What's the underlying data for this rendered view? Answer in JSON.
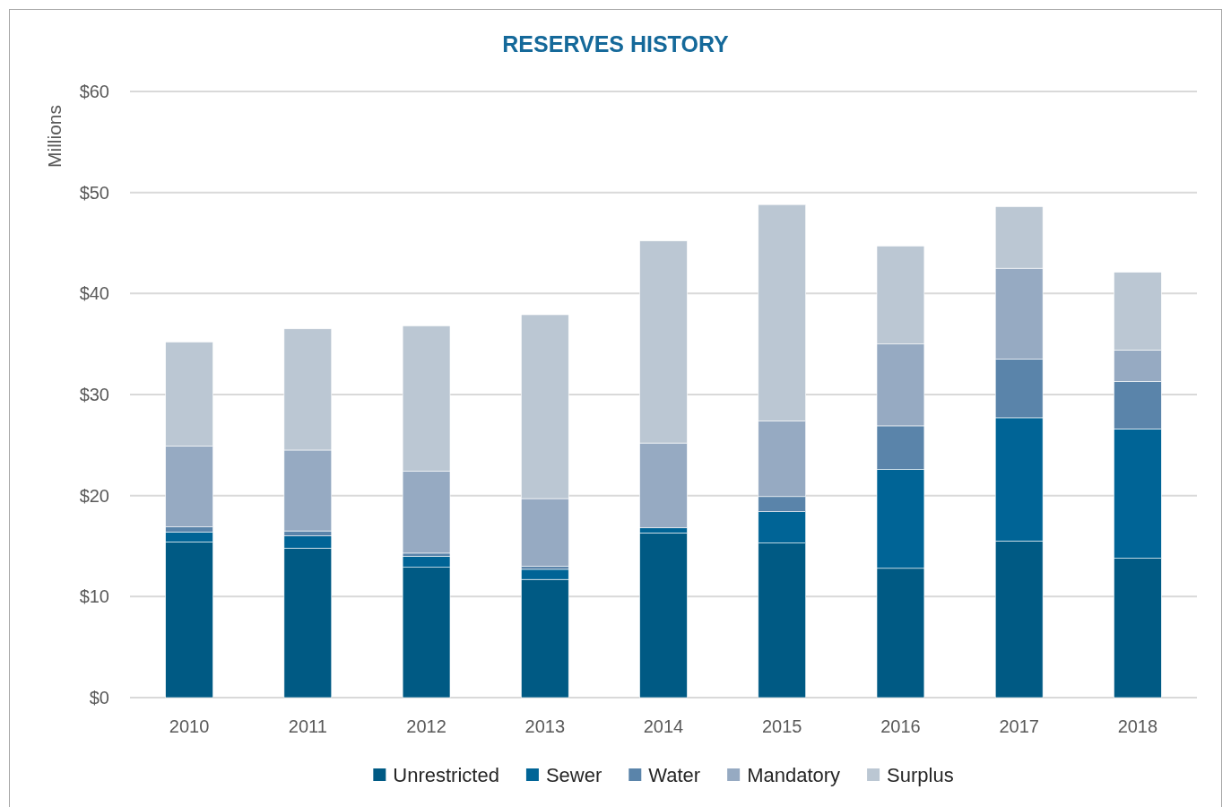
{
  "chart_data": {
    "type": "bar",
    "title": "RESERVES HISTORY",
    "ylabel": "Millions",
    "categories": [
      "2010",
      "2011",
      "2012",
      "2013",
      "2014",
      "2015",
      "2016",
      "2017",
      "2018"
    ],
    "stacked": true,
    "series": [
      {
        "name": "Unrestricted",
        "color": "#005a84",
        "values": [
          15.4,
          14.8,
          12.9,
          11.7,
          16.3,
          15.3,
          12.8,
          15.5,
          13.8
        ]
      },
      {
        "name": "Sewer",
        "color": "#006496",
        "values": [
          1.0,
          1.2,
          1.1,
          1.0,
          0.5,
          3.1,
          9.8,
          12.2,
          12.8
        ]
      },
      {
        "name": "Water",
        "color": "#5a84aa",
        "values": [
          0.5,
          0.5,
          0.3,
          0.3,
          0.0,
          1.5,
          4.3,
          5.8,
          4.7
        ]
      },
      {
        "name": "Mandatory",
        "color": "#96aac2",
        "values": [
          8.0,
          8.0,
          8.1,
          6.7,
          8.4,
          7.5,
          8.1,
          9.0,
          3.1
        ]
      },
      {
        "name": "Surplus",
        "color": "#bbc7d3",
        "values": [
          10.3,
          12.0,
          14.4,
          18.2,
          20.0,
          21.4,
          9.7,
          6.1,
          7.7
        ]
      }
    ],
    "ylim": [
      0,
      60
    ],
    "yticks": [
      {
        "value": 0,
        "label": "$0"
      },
      {
        "value": 10,
        "label": "$10"
      },
      {
        "value": 20,
        "label": "$20"
      },
      {
        "value": 30,
        "label": "$30"
      },
      {
        "value": 40,
        "label": "$40"
      },
      {
        "value": 50,
        "label": "$50"
      },
      {
        "value": 60,
        "label": "$60"
      }
    ],
    "grid": "y",
    "legend": "bottom"
  }
}
